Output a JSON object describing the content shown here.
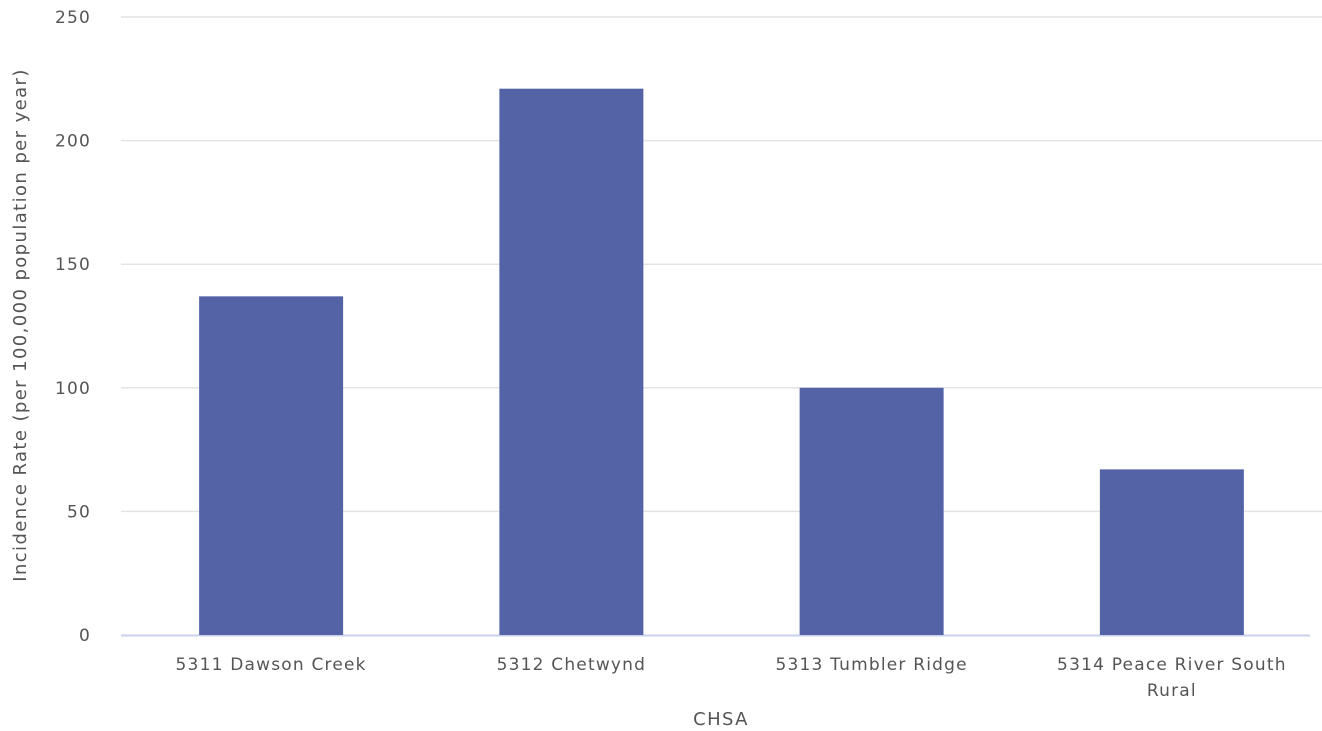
{
  "chart_data": {
    "type": "bar",
    "title": "",
    "xlabel": "CHSA",
    "ylabel": "Incidence Rate (per 100,000 population per year)",
    "categories": [
      [
        "5311 Dawson Creek"
      ],
      [
        "5312 Chetwynd"
      ],
      [
        "5313 Tumbler Ridge"
      ],
      [
        "5314 Peace River South",
        "Rural"
      ]
    ],
    "values": [
      137,
      221,
      100,
      67
    ],
    "ylim": [
      0,
      250
    ],
    "yticks": [
      "0",
      "50",
      "100",
      "150",
      "200",
      "250"
    ],
    "grid": true,
    "legend": "none",
    "colors": {
      "bar": "#5463a6",
      "grid": "#e4e4e4",
      "baseline": "#c8d2ea",
      "text": "#555555"
    }
  }
}
